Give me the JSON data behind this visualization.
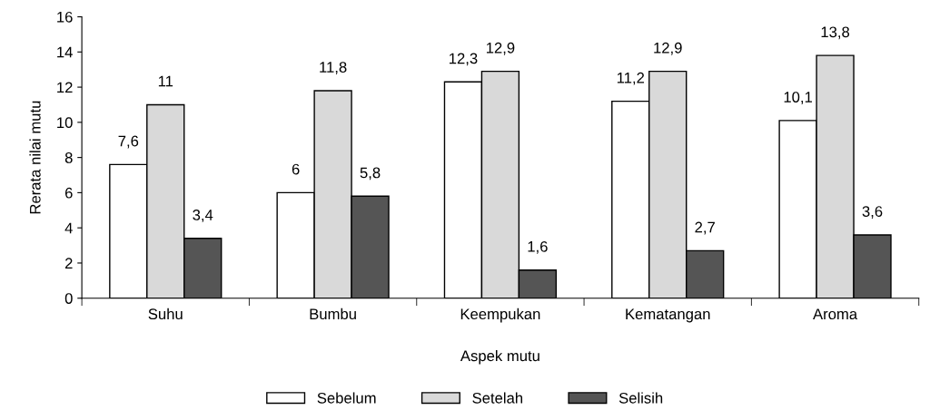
{
  "chart_data": {
    "type": "bar",
    "xlabel": "Aspek mutu",
    "ylabel": "Rerata nilai mutu",
    "categories": [
      "Suhu",
      "Bumbu",
      "Keempukan",
      "Kematangan",
      "Aroma"
    ],
    "series": [
      {
        "name": "Sebelum",
        "color": "#ffffff",
        "values": [
          7.6,
          6,
          12.3,
          11.2,
          10.1
        ],
        "value_labels": [
          "7,6",
          "6",
          "12,3",
          "11,2",
          "10,1"
        ]
      },
      {
        "name": "Setelah",
        "color": "#d9d9d9",
        "values": [
          11,
          11.8,
          12.9,
          12.9,
          13.8
        ],
        "value_labels": [
          "11",
          "11,8",
          "12,9",
          "12,9",
          "13,8"
        ]
      },
      {
        "name": "Selisih",
        "color": "#555555",
        "values": [
          3.4,
          5.8,
          1.6,
          2.7,
          3.6
        ],
        "value_labels": [
          "3,4",
          "5,8",
          "1,6",
          "2,7",
          "3,6"
        ]
      }
    ],
    "ylim": [
      0,
      16
    ],
    "yticks": [
      0,
      2,
      4,
      6,
      8,
      10,
      12,
      14,
      16
    ],
    "grid": false,
    "legend": "bottom"
  }
}
